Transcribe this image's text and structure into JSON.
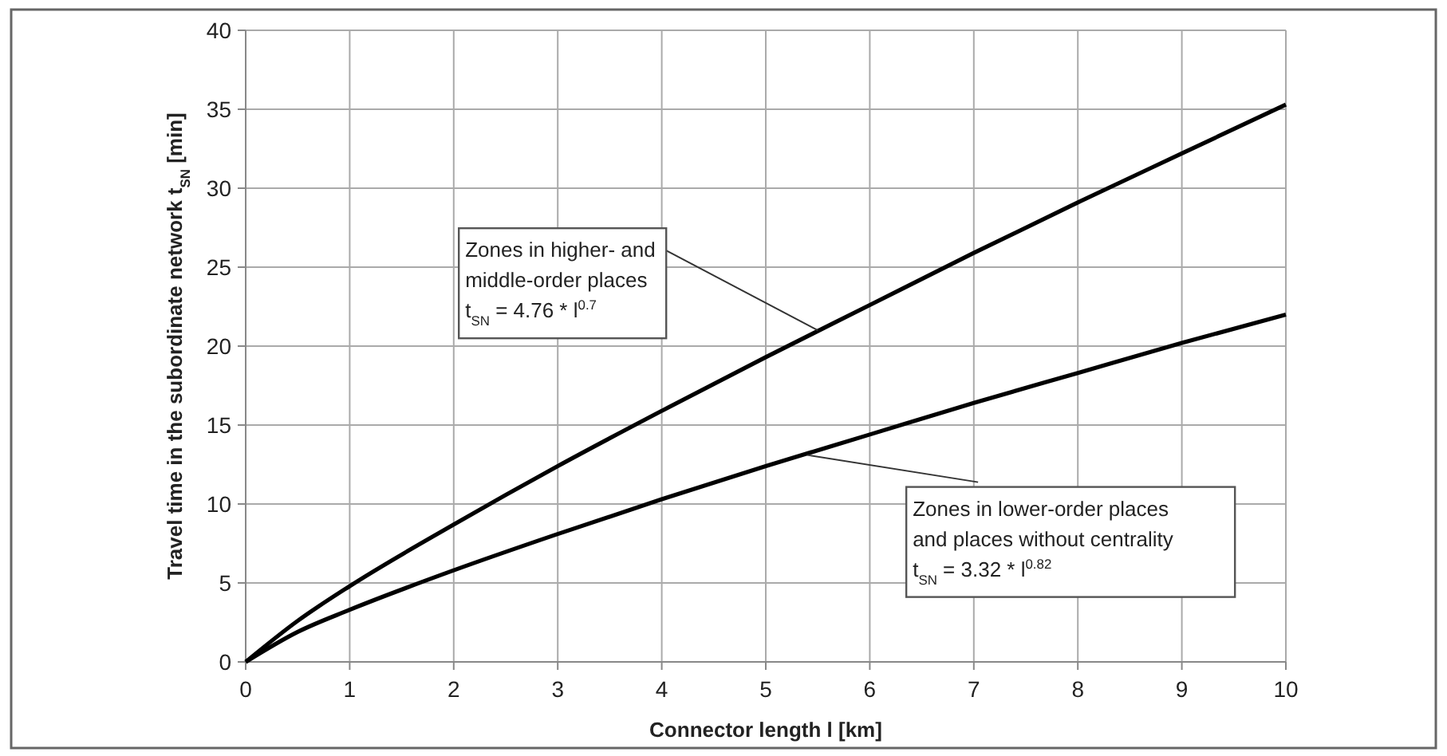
{
  "chart_data": {
    "type": "line",
    "xlabel": "Connector length l [km]",
    "ylabel": "Travel time in the subordinate network t$_{SN}$ [min]",
    "x": [
      0,
      0.5,
      1,
      2,
      3,
      4,
      5,
      6,
      7,
      8,
      9,
      10
    ],
    "series": [
      {
        "color": "#000000",
        "values": [
          0,
          2.6,
          4.8,
          8.7,
          12.4,
          15.9,
          19.3,
          22.6,
          25.9,
          29.1,
          32.2,
          35.3
        ]
      },
      {
        "color": "#000000",
        "values": [
          0,
          1.9,
          3.3,
          5.8,
          8.1,
          10.3,
          12.4,
          14.4,
          16.4,
          18.3,
          20.2,
          22.0
        ]
      }
    ],
    "annotations": [
      {
        "text": "Zones in higher- and\nmiddle-order places\nt$_{SN}$ = 4.76 * l$^{0.7}$",
        "x": 5.5,
        "y": 21
      },
      {
        "text": "Zones in lower-order places\nand places without centrality\nt$_{SN}$ = 3.32 * l$^{0.82}$",
        "x": 5.4,
        "y": 13.1
      }
    ],
    "xlim": [
      0,
      10
    ],
    "xticks": [
      0,
      1,
      2,
      3,
      4,
      5,
      6,
      7,
      8,
      9,
      10
    ],
    "ylim": [
      0,
      40
    ],
    "yticks": [
      0,
      5,
      10,
      15,
      20,
      25,
      30,
      35,
      40
    ],
    "grid": true,
    "marker": "none",
    "line_style": "solid"
  }
}
